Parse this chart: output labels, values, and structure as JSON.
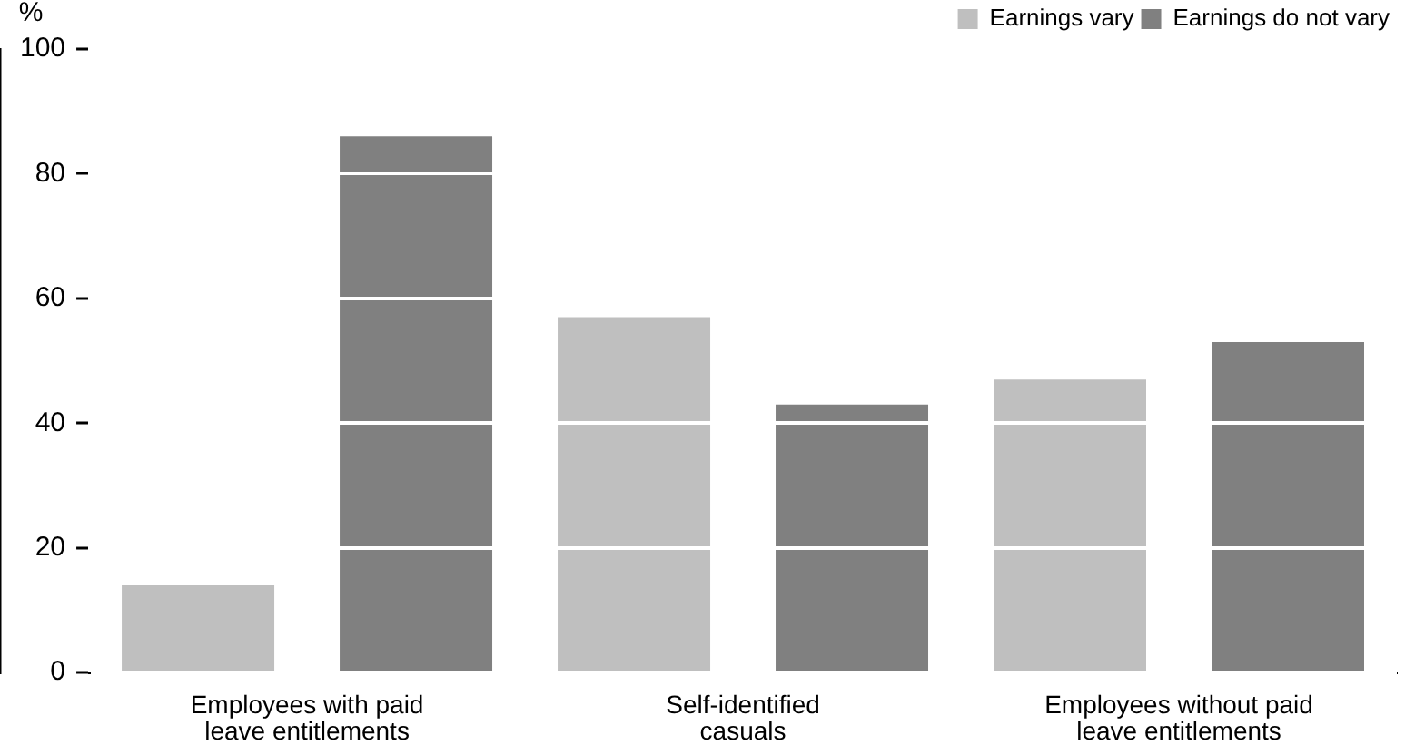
{
  "chart_data": {
    "type": "bar",
    "ylabel": "%",
    "categories": [
      "Employees with paid leave entitlements",
      "Self-identified casuals",
      "Employees without paid leave entitlements"
    ],
    "series": [
      {
        "name": "Earnings vary",
        "color": "#bfbfbf",
        "values": [
          14,
          57,
          47
        ]
      },
      {
        "name": "Earnings do not vary",
        "color": "#808080",
        "values": [
          86,
          43,
          53
        ]
      }
    ],
    "ylim": [
      0,
      100
    ],
    "yticks": [
      0,
      20,
      40,
      60,
      80,
      100
    ],
    "grid": "y",
    "legend": "top right"
  }
}
